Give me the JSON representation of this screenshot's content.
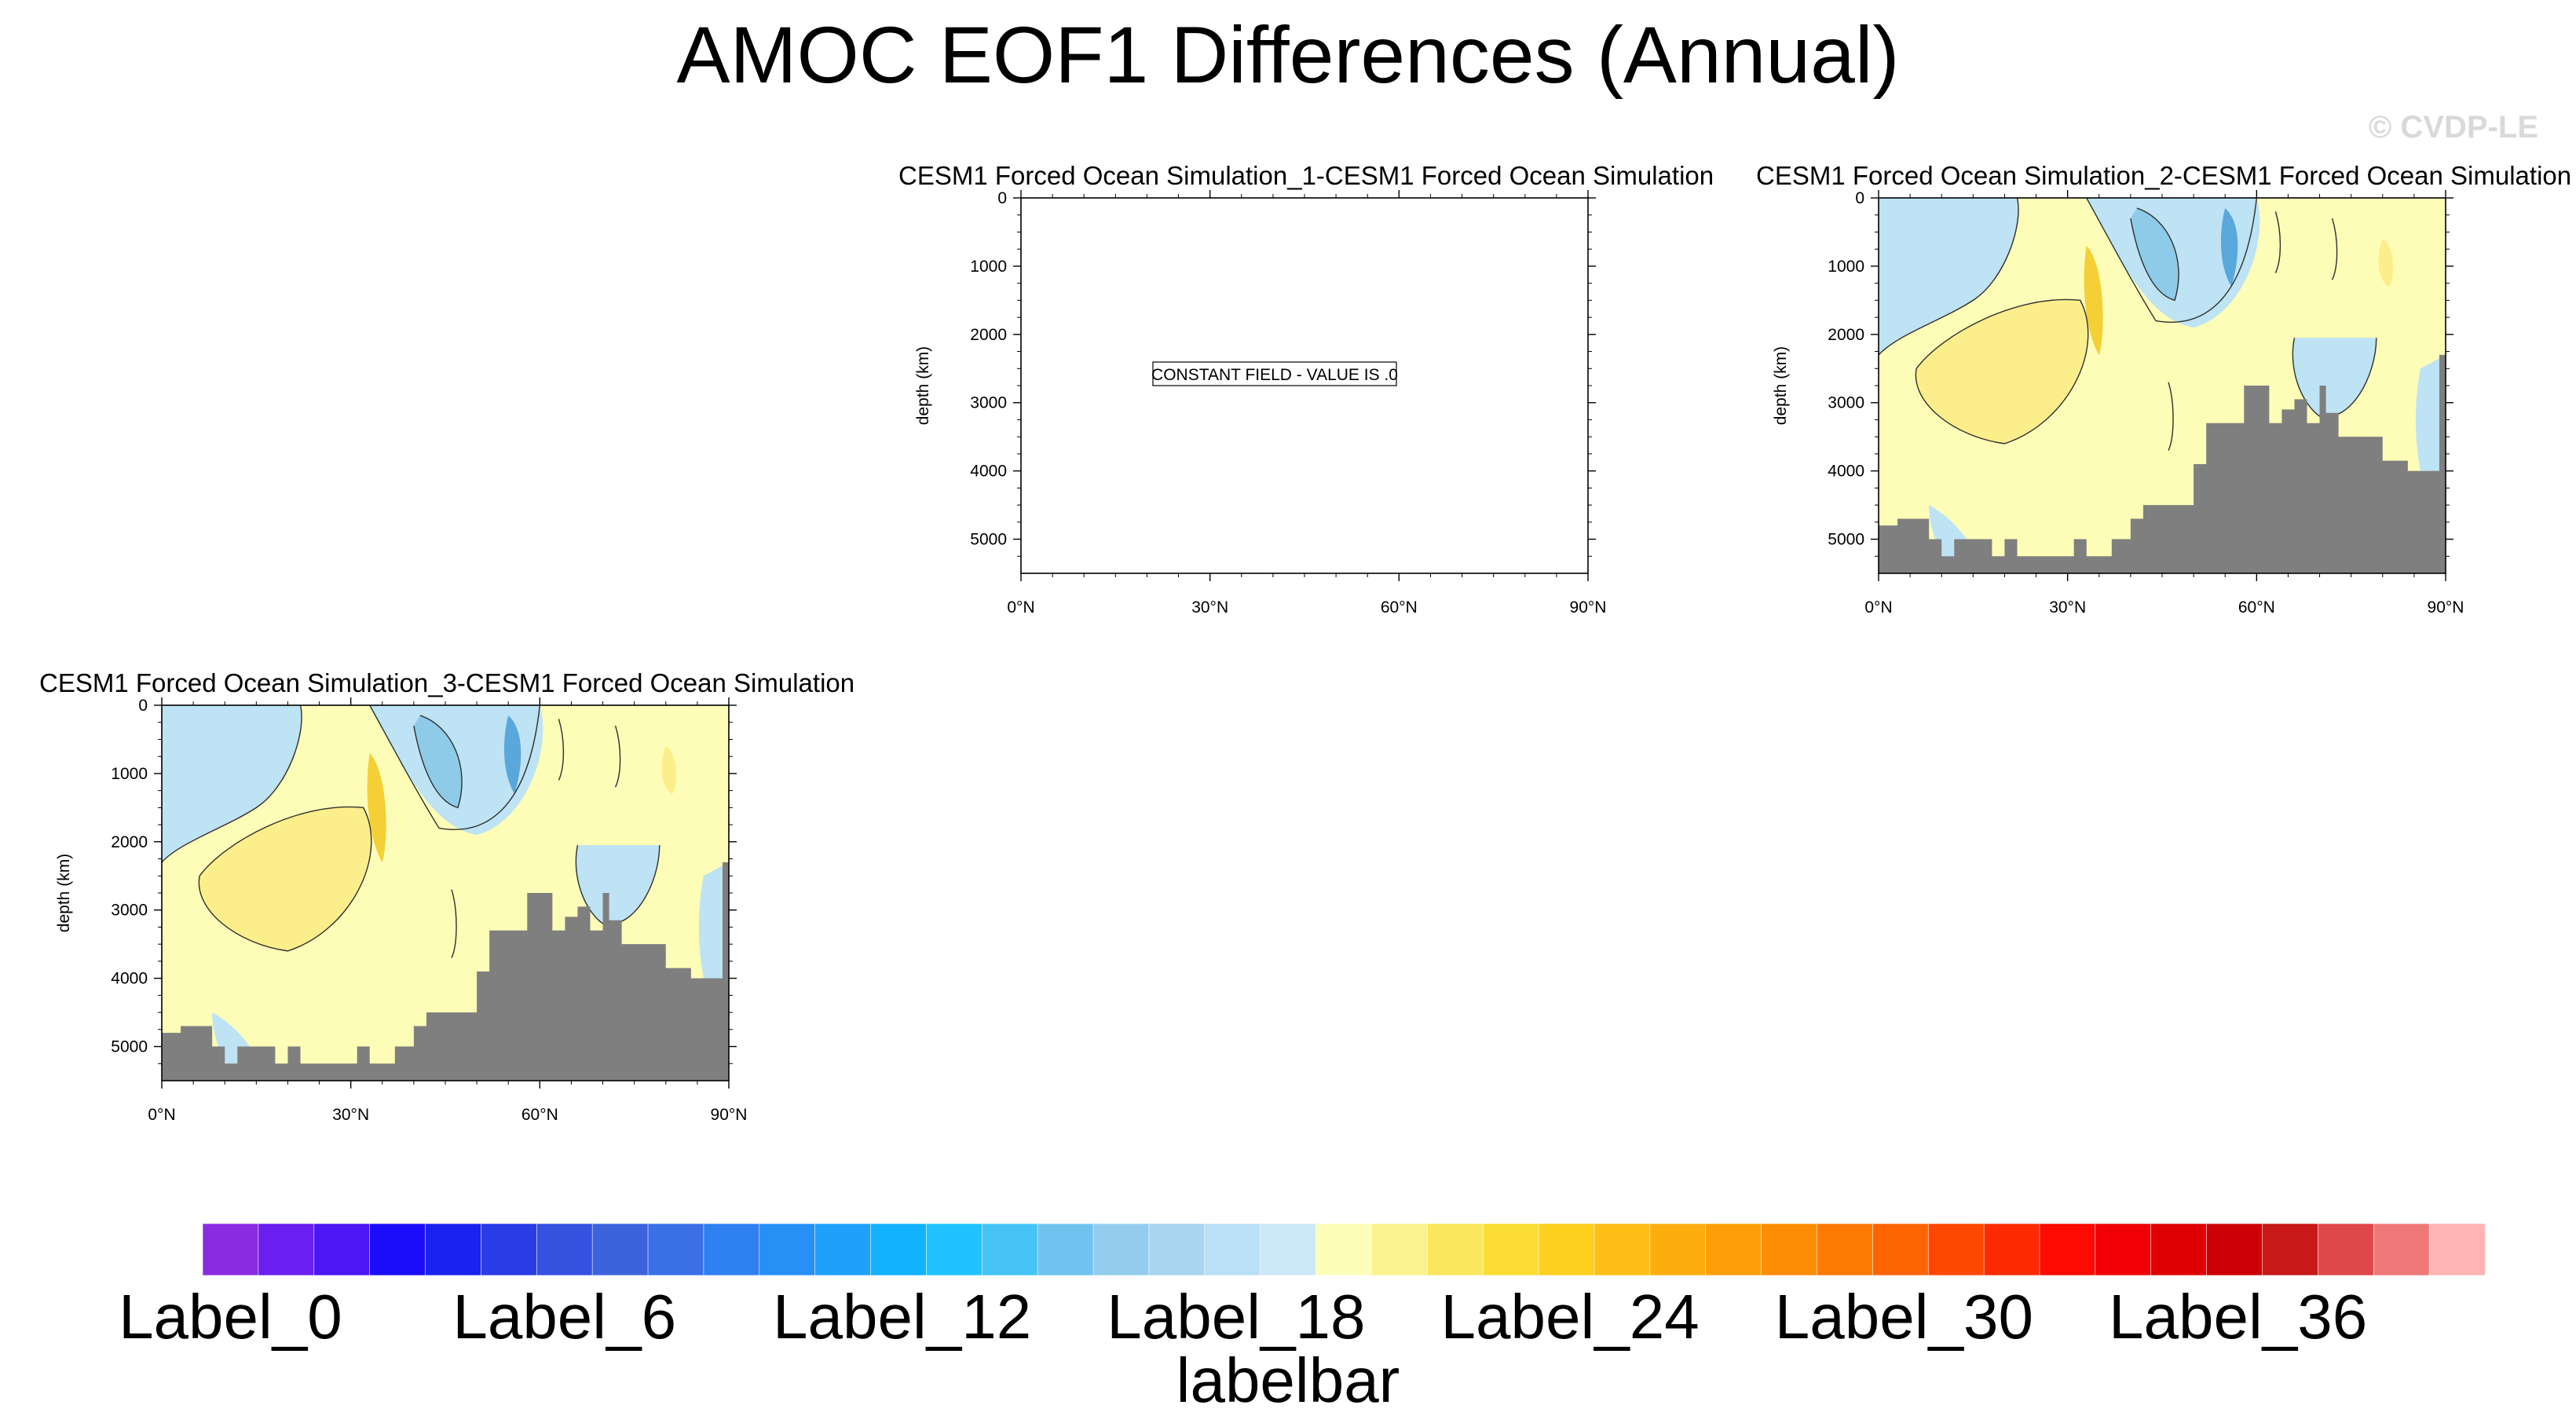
{
  "page": {
    "title": "AMOC EOF1 Differences (Annual)",
    "watermark": "© CVDP-LE"
  },
  "colors": {
    "land": "#7f7f7f",
    "contour_line": "#2f2f2f",
    "frame": "#000000",
    "negative_light": "#bde3f4",
    "negative_medium": "#8ecbe8",
    "negative_strong": "#5aa7db",
    "positive_light": "#fdfdb8",
    "positive_medium": "#fcee8a",
    "positive_strong": "#f4cf35"
  },
  "chart_data": [
    {
      "type": "contour",
      "panel": 1,
      "title": "CESM1 Forced Ocean Simulation_1-CESM1 Forced Ocean Simulation",
      "ylabel": "depth (km)",
      "xlabel": "",
      "x_ticks": [
        "0°N",
        "30°N",
        "60°N",
        "90°N"
      ],
      "y_ticks": [
        "0",
        "1000",
        "2000",
        "3000",
        "4000",
        "5000"
      ],
      "xlim": [
        0,
        90
      ],
      "ylim": [
        5500,
        0
      ],
      "constant_field": true,
      "annotation": "CONSTANT FIELD - VALUE IS .0"
    },
    {
      "type": "contour",
      "panel": 2,
      "title": "CESM1 Forced Ocean Simulation_2-CESM1 Forced Ocean Simulation",
      "ylabel": "depth (km)",
      "xlabel": "",
      "x_ticks": [
        "0°N",
        "30°N",
        "60°N",
        "90°N"
      ],
      "y_ticks": [
        "0",
        "1000",
        "2000",
        "3000",
        "4000",
        "5000"
      ],
      "xlim": [
        0,
        90
      ],
      "ylim": [
        5500,
        0
      ],
      "constant_field": false,
      "bathymetry": {
        "lat": [
          0,
          3,
          3,
          8,
          8,
          10,
          10,
          12,
          12,
          18,
          18,
          20,
          20,
          22,
          22,
          28,
          28,
          31,
          31,
          33,
          33,
          35,
          35,
          37,
          37,
          38,
          38,
          40,
          40,
          42,
          42,
          45,
          45,
          50,
          50,
          52,
          52,
          55,
          55,
          58,
          58,
          62,
          62,
          64,
          64,
          66,
          66,
          68,
          68,
          70,
          70,
          71,
          71,
          73,
          73,
          75,
          75,
          80,
          80,
          84,
          84,
          89,
          89,
          90
        ],
        "depth": [
          4800,
          4800,
          4700,
          4700,
          5000,
          5000,
          5250,
          5250,
          5000,
          5000,
          5250,
          5250,
          5000,
          5000,
          5250,
          5250,
          5250,
          5250,
          5000,
          5000,
          5250,
          5250,
          5250,
          5250,
          5000,
          5000,
          5000,
          5000,
          4700,
          4700,
          4500,
          4500,
          4500,
          4500,
          3900,
          3900,
          3300,
          3300,
          3300,
          3300,
          2750,
          2750,
          3300,
          3300,
          3100,
          3100,
          2950,
          2950,
          3300,
          3300,
          2750,
          2750,
          3150,
          3150,
          3500,
          3500,
          3500,
          3500,
          3850,
          3850,
          4000,
          4000,
          2300,
          2300
        ]
      }
    },
    {
      "type": "contour",
      "panel": 3,
      "title": "CESM1 Forced Ocean Simulation_3-CESM1 Forced Ocean Simulation",
      "ylabel": "depth (km)",
      "xlabel": "",
      "x_ticks": [
        "0°N",
        "30°N",
        "60°N",
        "90°N"
      ],
      "y_ticks": [
        "0",
        "1000",
        "2000",
        "3000",
        "4000",
        "5000"
      ],
      "xlim": [
        0,
        90
      ],
      "ylim": [
        5500,
        0
      ],
      "constant_field": false,
      "bathymetry": {
        "lat": [
          0,
          3,
          3,
          8,
          8,
          10,
          10,
          12,
          12,
          18,
          18,
          20,
          20,
          22,
          22,
          28,
          28,
          31,
          31,
          33,
          33,
          35,
          35,
          37,
          37,
          38,
          38,
          40,
          40,
          42,
          42,
          45,
          45,
          50,
          50,
          52,
          52,
          55,
          55,
          58,
          58,
          62,
          62,
          64,
          64,
          66,
          66,
          68,
          68,
          70,
          70,
          71,
          71,
          73,
          73,
          75,
          75,
          80,
          80,
          84,
          84,
          89,
          89,
          90
        ],
        "depth": [
          4800,
          4800,
          4700,
          4700,
          5000,
          5000,
          5250,
          5250,
          5000,
          5000,
          5250,
          5250,
          5000,
          5000,
          5250,
          5250,
          5250,
          5250,
          5000,
          5000,
          5250,
          5250,
          5250,
          5250,
          5000,
          5000,
          5000,
          5000,
          4700,
          4700,
          4500,
          4500,
          4500,
          4500,
          3900,
          3900,
          3300,
          3300,
          3300,
          3300,
          2750,
          2750,
          3300,
          3300,
          3100,
          3100,
          2950,
          2950,
          3300,
          3300,
          2750,
          2750,
          3150,
          3150,
          3500,
          3500,
          3500,
          3500,
          3850,
          3850,
          4000,
          4000,
          2300,
          2300
        ]
      }
    },
    {
      "type": "colorbar",
      "title": "labelbar",
      "labels": [
        "Label_0",
        "Label_6",
        "Label_12",
        "Label_18",
        "Label_24",
        "Label_30",
        "Label_36"
      ],
      "label_indices": [
        0,
        6,
        12,
        18,
        24,
        30,
        36
      ],
      "colors": [
        "#8a2be2",
        "#6a1ff0",
        "#4b17f5",
        "#1a0dfa",
        "#1a22f0",
        "#2a3ce6",
        "#3451e0",
        "#3c63dc",
        "#3a6fe8",
        "#2f80f0",
        "#2690f7",
        "#1ea0fb",
        "#12b2ff",
        "#20c3ff",
        "#45c4f5",
        "#6ec4ee",
        "#93ccee",
        "#a8d6f0",
        "#b9e0f5",
        "#cde8f8",
        "#fdfdb8",
        "#fcf28f",
        "#fbe75e",
        "#fcdd35",
        "#fdd01f",
        "#fdbf16",
        "#fdae0e",
        "#fd9f08",
        "#fd8d04",
        "#fd7a02",
        "#fd6402",
        "#fd4802",
        "#fd2a02",
        "#fd0a02",
        "#f00004",
        "#de0004",
        "#cc0004",
        "#c81818",
        "#df4848",
        "#ee7878",
        "#fdb4b4"
      ]
    }
  ]
}
